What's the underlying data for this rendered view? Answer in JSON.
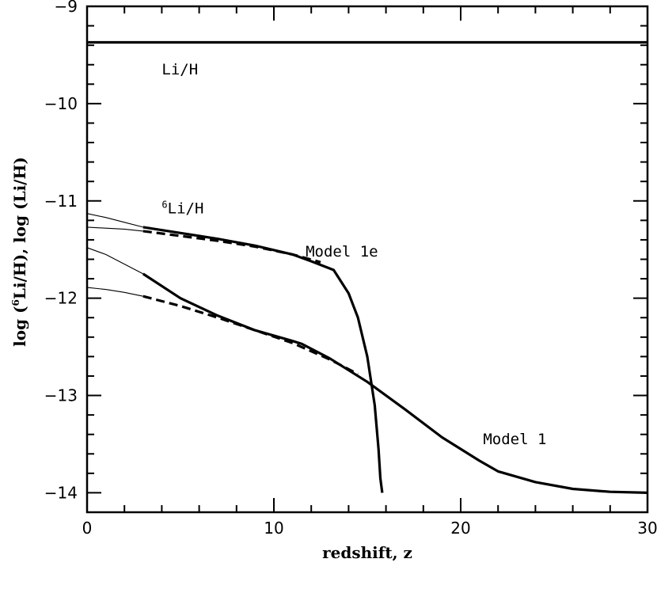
{
  "chart_data": {
    "type": "line",
    "title": "",
    "xlabel": "redshift, z",
    "ylabel": {
      "prefix": "log (",
      "sup": "6",
      "suffix": "Li/H),  log (Li/H)"
    },
    "xlim": [
      0,
      30
    ],
    "ylim": [
      -14.2,
      -9
    ],
    "xticks_major": [
      0,
      10,
      20,
      30
    ],
    "yticks_major": [
      -14,
      -13,
      -12,
      -11,
      -10,
      -9
    ],
    "xtick_labels": [
      "0",
      "10",
      "20",
      "30"
    ],
    "ytick_labels": [
      "−14",
      "−13",
      "−12",
      "−11",
      "−10",
      "−9"
    ],
    "grid": false,
    "annotations": [
      {
        "text": "Li/H",
        "at": [
          4.0,
          -9.7
        ]
      },
      {
        "sup": "6",
        "text": "Li/H",
        "at": [
          4.0,
          -11.13
        ]
      },
      {
        "text": "Model 1e",
        "at": [
          11.7,
          -11.57
        ]
      },
      {
        "text": "Model 1",
        "at": [
          21.2,
          -13.5
        ]
      }
    ],
    "series": [
      {
        "style": "solid-thick",
        "x": [
          0,
          5,
          10,
          20,
          30
        ],
        "y": [
          -9.37,
          -9.37,
          -9.37,
          -9.37,
          -9.37
        ]
      },
      {
        "style": "solid-thick",
        "x": [
          3,
          5,
          7,
          9,
          11,
          12,
          13.2,
          14,
          14.5,
          15,
          15.4,
          15.6,
          15.7,
          15.8
        ],
        "y": [
          -11.27,
          -11.33,
          -11.39,
          -11.46,
          -11.55,
          -11.62,
          -11.71,
          -11.95,
          -12.2,
          -12.6,
          -13.1,
          -13.55,
          -13.85,
          -14.0
        ]
      },
      {
        "style": "dashed-thick",
        "x": [
          3,
          5,
          7,
          9,
          11,
          12.5
        ],
        "y": [
          -11.31,
          -11.36,
          -11.41,
          -11.47,
          -11.55,
          -11.63
        ]
      },
      {
        "style": "solid-thin",
        "x": [
          0,
          1,
          2,
          3
        ],
        "y": [
          -11.13,
          -11.17,
          -11.22,
          -11.27
        ]
      },
      {
        "style": "solid-thin",
        "x": [
          0,
          1,
          2,
          3
        ],
        "y": [
          -11.27,
          -11.28,
          -11.29,
          -11.31
        ]
      },
      {
        "style": "solid-thick",
        "x": [
          3,
          5,
          7,
          9,
          11,
          11.5,
          13,
          15,
          17,
          19,
          21,
          22,
          24,
          26,
          28,
          30
        ],
        "y": [
          -11.75,
          -12.0,
          -12.18,
          -12.33,
          -12.44,
          -12.47,
          -12.62,
          -12.86,
          -13.14,
          -13.43,
          -13.67,
          -13.78,
          -13.89,
          -13.96,
          -13.99,
          -14.0
        ]
      },
      {
        "style": "dashed-thick",
        "x": [
          3,
          5,
          7,
          9,
          11,
          13,
          14.5
        ],
        "y": [
          -11.98,
          -12.08,
          -12.2,
          -12.33,
          -12.46,
          -12.63,
          -12.78
        ]
      },
      {
        "style": "solid-thin",
        "x": [
          0,
          1,
          2,
          3
        ],
        "y": [
          -11.48,
          -11.55,
          -11.65,
          -11.75
        ]
      },
      {
        "style": "solid-thin",
        "x": [
          0,
          1,
          2,
          3
        ],
        "y": [
          -11.89,
          -11.91,
          -11.94,
          -11.98
        ]
      }
    ]
  }
}
